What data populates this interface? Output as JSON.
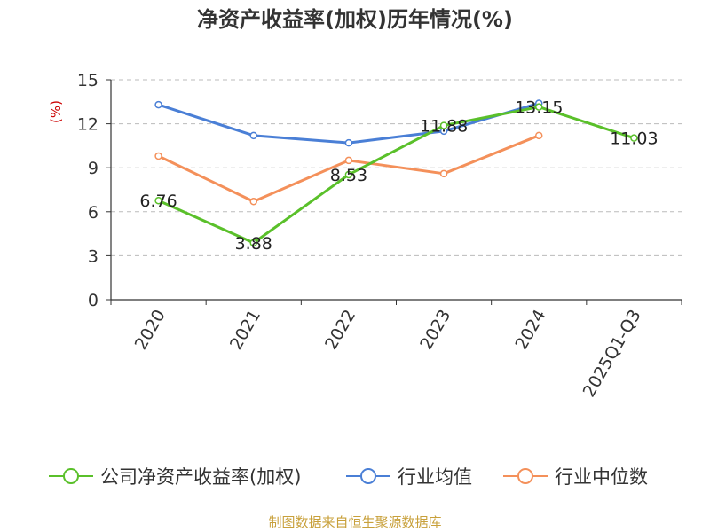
{
  "chart_data": {
    "type": "line",
    "title": "净资产收益率(加权)历年情况(%)",
    "ylabel": "(%)",
    "categories": [
      "2020",
      "2021",
      "2022",
      "2023",
      "2024",
      "2025Q1-Q3"
    ],
    "ylim": [
      0,
      15
    ],
    "yticks": [
      0,
      3,
      6,
      9,
      12,
      15
    ],
    "grid": true,
    "legend_position": "bottom",
    "series": [
      {
        "name": "公司净资产收益率(加权)",
        "color": "#5ac02a",
        "values": [
          6.76,
          3.88,
          8.53,
          11.88,
          13.15,
          11.03
        ],
        "labels": [
          "6.76",
          "3.88",
          "8.53",
          "11.88",
          "13.15",
          "11.03"
        ]
      },
      {
        "name": "行业均值",
        "color": "#4a7fd6",
        "values": [
          13.3,
          11.2,
          10.7,
          11.5,
          13.4,
          null
        ],
        "labels": null
      },
      {
        "name": "行业中位数",
        "color": "#f4905a",
        "values": [
          9.8,
          6.7,
          9.5,
          8.6,
          11.2,
          null
        ],
        "labels": null
      }
    ]
  },
  "footer": "制图数据来自恒生聚源数据库"
}
